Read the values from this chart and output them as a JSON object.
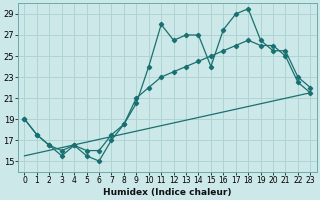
{
  "xlabel": "Humidex (Indice chaleur)",
  "bg_color": "#cce8e8",
  "line_color": "#1a7070",
  "grid_color": "#b0d4d4",
  "xlim": [
    -0.5,
    23.5
  ],
  "ylim": [
    14,
    30
  ],
  "xticks": [
    0,
    1,
    2,
    3,
    4,
    5,
    6,
    7,
    8,
    9,
    10,
    11,
    12,
    13,
    14,
    15,
    16,
    17,
    18,
    19,
    20,
    21,
    22,
    23
  ],
  "yticks": [
    15,
    17,
    19,
    21,
    23,
    25,
    27,
    29
  ],
  "line1_x": [
    0,
    1,
    2,
    3,
    4,
    5,
    6,
    7,
    8,
    9,
    10,
    11,
    12,
    13,
    14,
    15,
    16,
    17,
    18,
    19,
    20,
    21,
    22,
    23
  ],
  "line1_y": [
    19,
    17.5,
    16.5,
    15.5,
    16.5,
    15.5,
    15,
    17,
    18.5,
    20.5,
    24,
    28,
    26.5,
    27,
    27,
    24,
    27.5,
    29,
    29.5,
    26.5,
    25.5,
    25.5,
    23,
    22
  ],
  "line2_x": [
    0,
    1,
    2,
    3,
    4,
    5,
    6,
    7,
    8,
    9,
    10,
    11,
    12,
    13,
    14,
    15,
    16,
    17,
    18,
    19,
    20,
    21,
    22,
    23
  ],
  "line2_y": [
    19,
    17.5,
    16.5,
    16,
    16.5,
    16,
    16,
    17.5,
    18.5,
    21,
    22,
    23,
    23.5,
    24,
    24.5,
    25,
    25.5,
    26,
    26.5,
    26,
    26,
    25,
    22.5,
    21.5
  ],
  "line3_x": [
    0,
    23
  ],
  "line3_y": [
    15.5,
    21.5
  ]
}
